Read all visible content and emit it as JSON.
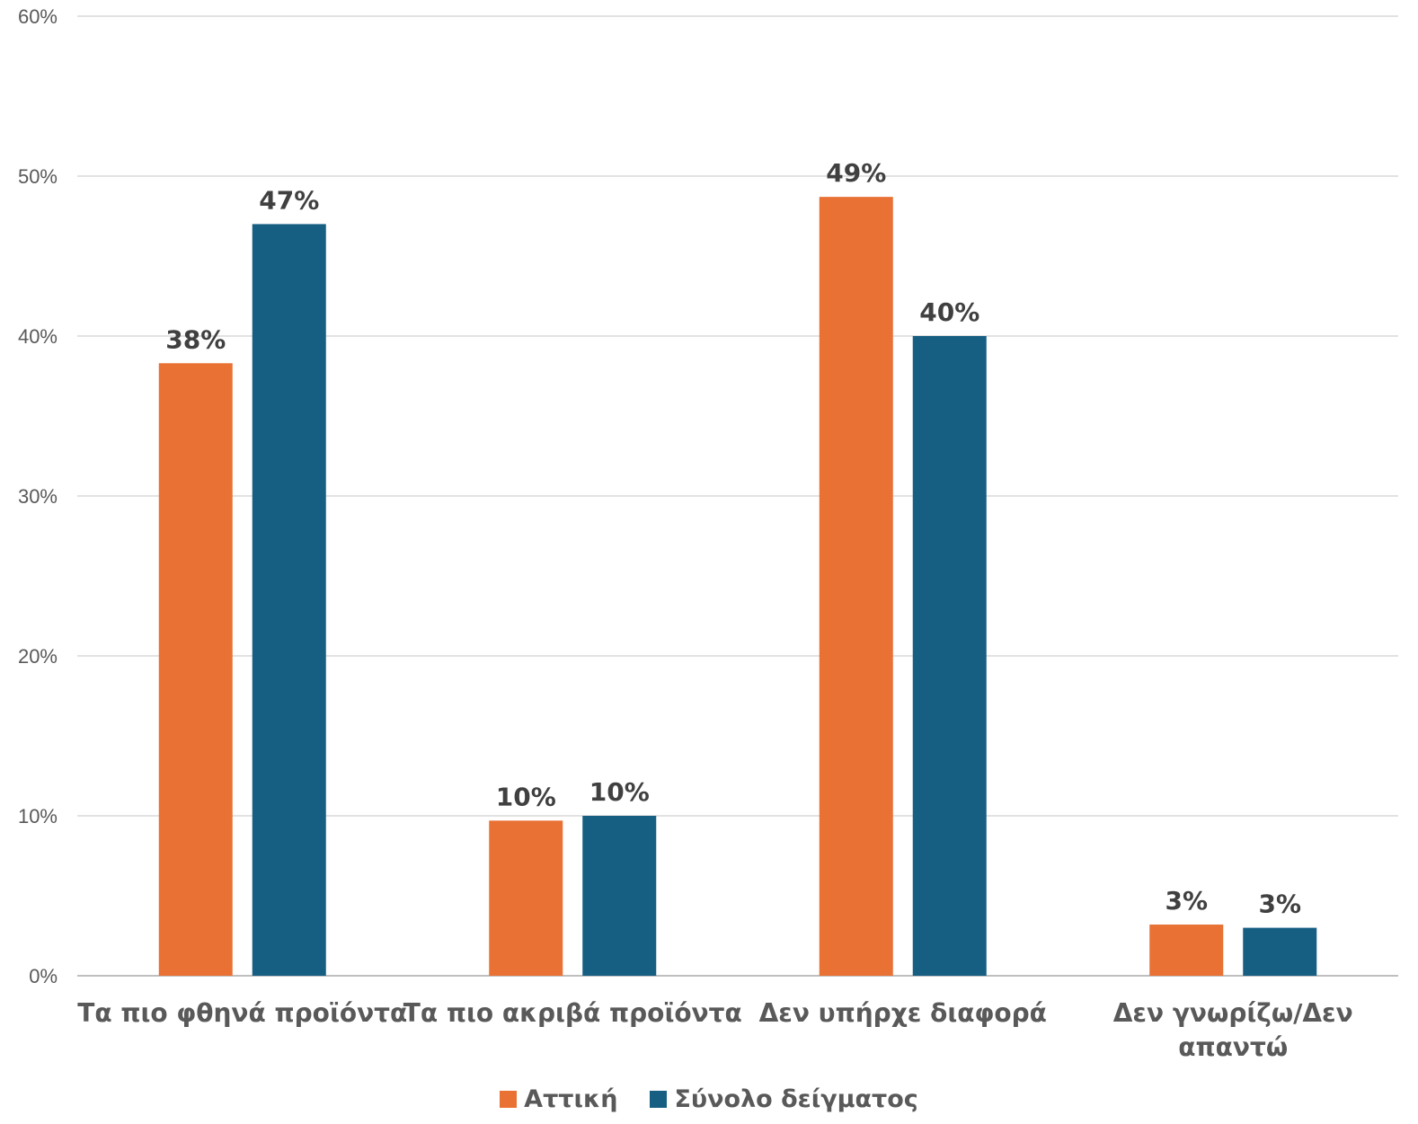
{
  "chart_data": {
    "type": "bar",
    "categories": [
      "Τα πιο φθηνά προϊόντα",
      "Τα πιο ακριβά προϊόντα",
      "Δεν υπήρχε διαφορά",
      "Δεν γνωρίζω/Δεν απαντώ"
    ],
    "category_lines": [
      [
        "Τα πιο φθηνά προϊόντα"
      ],
      [
        "Τα πιο ακριβά προϊόντα"
      ],
      [
        "Δεν υπήρχε διαφορά"
      ],
      [
        "Δεν γνωρίζω/Δεν",
        "απαντώ"
      ]
    ],
    "series": [
      {
        "name": "Αττική",
        "color": "#E87133",
        "values": [
          38.3,
          9.7,
          48.7,
          3.2
        ],
        "labels": [
          "38%",
          "10%",
          "49%",
          "3%"
        ]
      },
      {
        "name": "Σύνολο δείγματος",
        "color": "#175F82",
        "values": [
          47.0,
          10.0,
          40.0,
          3.0
        ],
        "labels": [
          "47%",
          "10%",
          "40%",
          "3%"
        ]
      }
    ],
    "ylim": [
      0,
      60
    ],
    "yticks": [
      "0%",
      "10%",
      "20%",
      "30%",
      "40%",
      "50%",
      "60%"
    ],
    "grid": true,
    "legend_position": "bottom"
  }
}
